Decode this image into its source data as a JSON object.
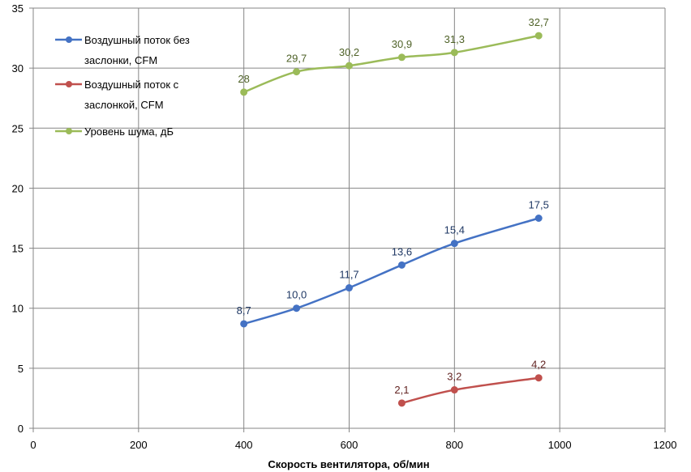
{
  "chart_data": {
    "type": "line",
    "title": "",
    "xlabel": "Скорость вентилятора, об/мин",
    "ylabel": "",
    "xlim": [
      0,
      1200
    ],
    "ylim": [
      0,
      35
    ],
    "xticks": [
      0,
      200,
      400,
      600,
      800,
      1000,
      1200
    ],
    "yticks": [
      0,
      5,
      10,
      15,
      20,
      25,
      30,
      35
    ],
    "grid": true,
    "legend_position": "top-left",
    "series": [
      {
        "name": "Воздушный поток без заслонки, CFM",
        "legend_lines": [
          "Воздушный поток без",
          "заслонки, CFM"
        ],
        "color": "#4472C4",
        "label_color": "#1F3864",
        "x": [
          400,
          500,
          600,
          700,
          800,
          960
        ],
        "values": [
          8.7,
          10.0,
          11.7,
          13.6,
          15.4,
          17.5
        ],
        "labels": [
          "8,7",
          "10,0",
          "11,7",
          "13,6",
          "15,4",
          "17,5"
        ]
      },
      {
        "name": "Воздушный поток с заслонкой, CFM",
        "legend_lines": [
          "Воздушный поток с",
          "заслонкой, CFM"
        ],
        "color": "#C0504D",
        "label_color": "#632523",
        "x": [
          700,
          800,
          960
        ],
        "values": [
          2.1,
          3.2,
          4.2
        ],
        "labels": [
          "2,1",
          "3,2",
          "4,2"
        ]
      },
      {
        "name": "Уровень шума, дБ",
        "legend_lines": [
          "Уровень шума, дБ"
        ],
        "color": "#9BBB59",
        "label_color": "#4F6228",
        "x": [
          400,
          500,
          600,
          700,
          800,
          960
        ],
        "values": [
          28,
          29.7,
          30.2,
          30.9,
          31.3,
          32.7
        ],
        "labels": [
          "28",
          "29,7",
          "30,2",
          "30,9",
          "31,3",
          "32,7"
        ]
      }
    ]
  }
}
